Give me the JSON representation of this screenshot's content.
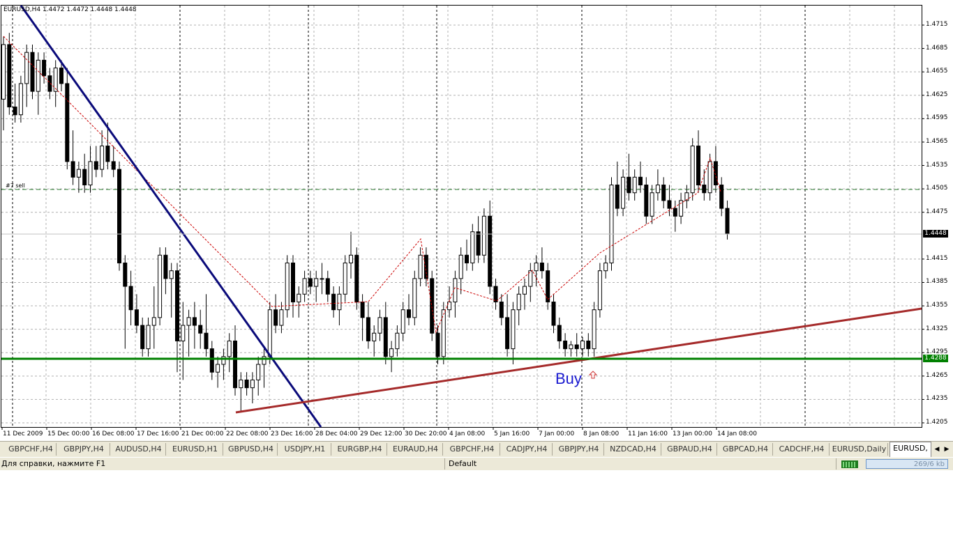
{
  "chart": {
    "symbol_info": "EURUSD,H4  1.4472 1.4472 1.4448 1.4448",
    "order_label": "#7 sell",
    "buy_label": "Buy",
    "current_price": "1.4448",
    "support_price": "1.4288",
    "price_ticks": [
      "1.4715",
      "1.4685",
      "1.4655",
      "1.4625",
      "1.4595",
      "1.4565",
      "1.4535",
      "1.4505",
      "1.4475",
      "1.4415",
      "1.4385",
      "1.4355",
      "1.4325",
      "1.4295",
      "1.4265",
      "1.4235",
      "1.4205"
    ],
    "time_ticks": [
      "11 Dec 2009",
      "15 Dec 00:00",
      "16 Dec 08:00",
      "17 Dec 16:00",
      "21 Dec 00:00",
      "22 Dec 08:00",
      "23 Dec 16:00",
      "28 Dec 04:00",
      "29 Dec 12:00",
      "30 Dec 20:00",
      "4 Jan 08:00",
      "5 Jan 16:00",
      "7 Jan 00:00",
      "8 Jan 08:00",
      "11 Jan 16:00",
      "13 Jan 00:00",
      "14 Jan 08:00"
    ],
    "colors": {
      "bull_candle": "#ffffff",
      "bear_candle": "#000000",
      "downtrend_line": "#0a0a7a",
      "uptrend_line": "#a52a2a",
      "support_line": "#008000",
      "order_line": "#2e7d32",
      "zigzag": "#cc0000",
      "grid": "#b0b0b0"
    }
  },
  "tabs": [
    "GBPCHF,H4",
    "GBPJPY,H4",
    "AUDUSD,H4",
    "EURUSD,H1",
    "GBPUSD,H4",
    "USDJPY,H1",
    "EURGBP,H4",
    "EURAUD,H4",
    "GBPCHF,H4",
    "CADJPY,H4",
    "GBPJPY,H4",
    "NZDCAD,H4",
    "GBPAUD,H4",
    "GBPCAD,H4",
    "CADCHF,H4",
    "EURUSD,Daily",
    "EURUSD,"
  ],
  "active_tab_index": 16,
  "status": {
    "help": "Для справки, нажмите F1",
    "profile": "Default",
    "traffic": "269/6 kb"
  }
}
